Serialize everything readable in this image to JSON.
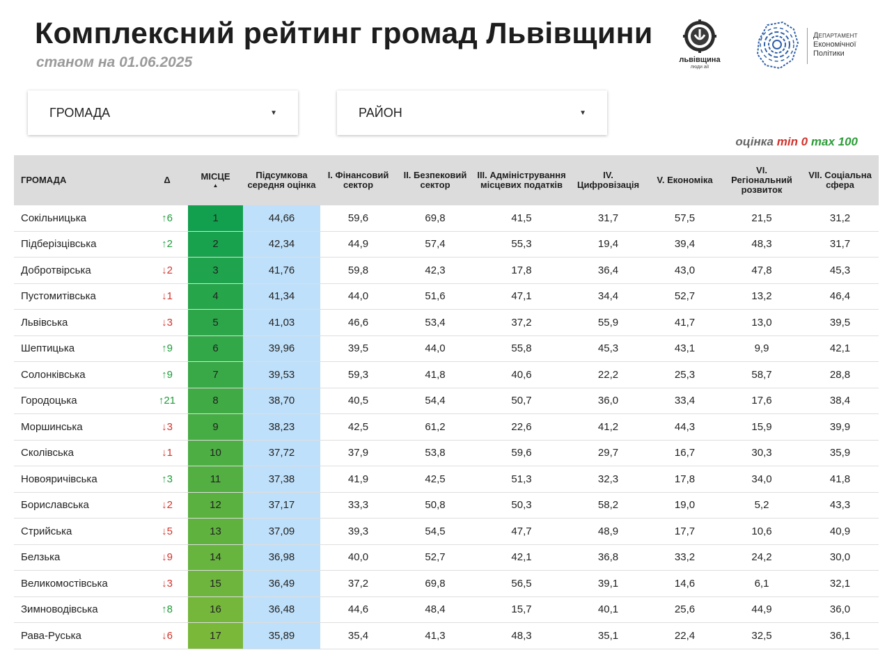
{
  "header": {
    "title": "Комплексний рейтинг громад Львівщини",
    "subtitle": "станом на 01.06.2025"
  },
  "logos": {
    "lviv_name": "львівщина",
    "lviv_sub": "люди аії",
    "dept_line1": "Департамент",
    "dept_line2": "Економічної",
    "dept_line3": "Політики"
  },
  "filters": {
    "hromada_label": "ГРОМАДА",
    "rayon_label": "РАЙОН"
  },
  "legend": {
    "prefix": "оцінка",
    "min": "min 0",
    "max": "max 100"
  },
  "colors": {
    "place_top": "#12a04e",
    "place_bottom": "#7ab83a",
    "score_bg": "#bfe0fa",
    "header_bg": "#dcdcdc",
    "delta_up": "#1f9a3a",
    "delta_down": "#d0342c"
  },
  "table": {
    "columns": [
      "ГРОМАДА",
      "Δ",
      "МІСЦЕ",
      "Підсумкова середня оцінка",
      "I. Фінансовий сектор",
      "II. Безпековий сектор",
      "III. Адміністрування місцевих податків",
      "IV. Цифровізація",
      "V. Економіка",
      "VI. Регіональний розвиток",
      "VII. Соціальна сфера"
    ],
    "rows": [
      {
        "name": "Сокільницька",
        "delta": "↑6",
        "dir": "up",
        "place": "1",
        "score": "44,66",
        "c1": "59,6",
        "c2": "69,8",
        "c3": "41,5",
        "c4": "31,7",
        "c5": "57,5",
        "c6": "21,5",
        "c7": "31,2"
      },
      {
        "name": "Підберізцівська",
        "delta": "↑2",
        "dir": "up",
        "place": "2",
        "score": "42,34",
        "c1": "44,9",
        "c2": "57,4",
        "c3": "55,3",
        "c4": "19,4",
        "c5": "39,4",
        "c6": "48,3",
        "c7": "31,7"
      },
      {
        "name": "Добротвірська",
        "delta": "↓2",
        "dir": "down",
        "place": "3",
        "score": "41,76",
        "c1": "59,8",
        "c2": "42,3",
        "c3": "17,8",
        "c4": "36,4",
        "c5": "43,0",
        "c6": "47,8",
        "c7": "45,3"
      },
      {
        "name": "Пустомитівська",
        "delta": "↓1",
        "dir": "down",
        "place": "4",
        "score": "41,34",
        "c1": "44,0",
        "c2": "51,6",
        "c3": "47,1",
        "c4": "34,4",
        "c5": "52,7",
        "c6": "13,2",
        "c7": "46,4"
      },
      {
        "name": "Львівська",
        "delta": "↓3",
        "dir": "down",
        "place": "5",
        "score": "41,03",
        "c1": "46,6",
        "c2": "53,4",
        "c3": "37,2",
        "c4": "55,9",
        "c5": "41,7",
        "c6": "13,0",
        "c7": "39,5"
      },
      {
        "name": "Шептицька",
        "delta": "↑9",
        "dir": "up",
        "place": "6",
        "score": "39,96",
        "c1": "39,5",
        "c2": "44,0",
        "c3": "55,8",
        "c4": "45,3",
        "c5": "43,1",
        "c6": "9,9",
        "c7": "42,1"
      },
      {
        "name": "Солонківська",
        "delta": "↑9",
        "dir": "up",
        "place": "7",
        "score": "39,53",
        "c1": "59,3",
        "c2": "41,8",
        "c3": "40,6",
        "c4": "22,2",
        "c5": "25,3",
        "c6": "58,7",
        "c7": "28,8"
      },
      {
        "name": "Городоцька",
        "delta": "↑21",
        "dir": "up",
        "place": "8",
        "score": "38,70",
        "c1": "40,5",
        "c2": "54,4",
        "c3": "50,7",
        "c4": "36,0",
        "c5": "33,4",
        "c6": "17,6",
        "c7": "38,4"
      },
      {
        "name": "Моршинська",
        "delta": "↓3",
        "dir": "down",
        "place": "9",
        "score": "38,23",
        "c1": "42,5",
        "c2": "61,2",
        "c3": "22,6",
        "c4": "41,2",
        "c5": "44,3",
        "c6": "15,9",
        "c7": "39,9"
      },
      {
        "name": "Сколівська",
        "delta": "↓1",
        "dir": "down",
        "place": "10",
        "score": "37,72",
        "c1": "37,9",
        "c2": "53,8",
        "c3": "59,6",
        "c4": "29,7",
        "c5": "16,7",
        "c6": "30,3",
        "c7": "35,9"
      },
      {
        "name": "Новояричівська",
        "delta": "↑3",
        "dir": "up",
        "place": "11",
        "score": "37,38",
        "c1": "41,9",
        "c2": "42,5",
        "c3": "51,3",
        "c4": "32,3",
        "c5": "17,8",
        "c6": "34,0",
        "c7": "41,8"
      },
      {
        "name": "Бориславська",
        "delta": "↓2",
        "dir": "down",
        "place": "12",
        "score": "37,17",
        "c1": "33,3",
        "c2": "50,8",
        "c3": "50,3",
        "c4": "58,2",
        "c5": "19,0",
        "c6": "5,2",
        "c7": "43,3"
      },
      {
        "name": "Стрийська",
        "delta": "↓5",
        "dir": "down",
        "place": "13",
        "score": "37,09",
        "c1": "39,3",
        "c2": "54,5",
        "c3": "47,7",
        "c4": "48,9",
        "c5": "17,7",
        "c6": "10,6",
        "c7": "40,9"
      },
      {
        "name": "Белзька",
        "delta": "↓9",
        "dir": "down",
        "place": "14",
        "score": "36,98",
        "c1": "40,0",
        "c2": "52,7",
        "c3": "42,1",
        "c4": "36,8",
        "c5": "33,2",
        "c6": "24,2",
        "c7": "30,0"
      },
      {
        "name": "Великомостівська",
        "delta": "↓3",
        "dir": "down",
        "place": "15",
        "score": "36,49",
        "c1": "37,2",
        "c2": "69,8",
        "c3": "56,5",
        "c4": "39,1",
        "c5": "14,6",
        "c6": "6,1",
        "c7": "32,1"
      },
      {
        "name": "Зимноводівська",
        "delta": "↑8",
        "dir": "up",
        "place": "16",
        "score": "36,48",
        "c1": "44,6",
        "c2": "48,4",
        "c3": "15,7",
        "c4": "40,1",
        "c5": "25,6",
        "c6": "44,9",
        "c7": "36,0"
      },
      {
        "name": "Рава-Руська",
        "delta": "↓6",
        "dir": "down",
        "place": "17",
        "score": "35,89",
        "c1": "35,4",
        "c2": "41,3",
        "c3": "48,3",
        "c4": "35,1",
        "c5": "22,4",
        "c6": "32,5",
        "c7": "36,1"
      }
    ]
  }
}
